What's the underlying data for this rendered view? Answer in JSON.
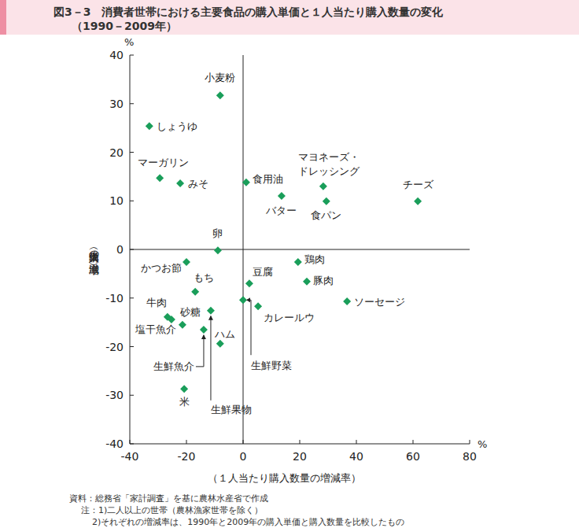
{
  "chart_data": {
    "type": "scatter",
    "title": "図3－3　消費者世帯における主要食品の購入単価と１人当たり購入数量の変化",
    "subtitle": "（1990－2009年）",
    "x_label": "（１人当たり購入数量の増減率）",
    "y_label": "（購入単価の増減率）",
    "x_unit_label": "%",
    "y_unit_label": "%",
    "notes": [
      "資料：総務省「家計調査」を基に農林水産省で作成",
      "注：1)二人以上の世帯（農林漁家世帯を除く）",
      "2)それぞれの増減率は、1990年と2009年の購入単価と購入数量を比較したもの"
    ],
    "labels": [
      "小麦粉",
      "しょうゆ",
      "マーガリン",
      "みそ",
      "食用油",
      "バター",
      "マヨネーズ・ドレッシング",
      "食パン",
      "チーズ",
      "卵",
      "かつお節",
      "鶏肉",
      "豆腐",
      "豚肉",
      "もち",
      "生鮮野菜",
      "ソーセージ",
      "カレールウ",
      "牛肉",
      "塩干魚介",
      "生鮮果物",
      "砂糖",
      "生鮮魚介",
      "ハム",
      "米"
    ],
    "x": [
      -8.1,
      -33.1,
      -29.4,
      -22.2,
      1.1,
      13.6,
      28.3,
      29.4,
      61.7,
      -8.9,
      -20.0,
      19.4,
      2.2,
      22.5,
      -16.9,
      0.0,
      36.7,
      5.3,
      -26.7,
      -25.3,
      -11.4,
      -21.4,
      -13.9,
      -8.1,
      -20.8
    ],
    "values": [
      31.7,
      25.4,
      14.7,
      13.6,
      13.8,
      11.0,
      13.0,
      9.9,
      9.9,
      -0.2,
      -2.6,
      -2.6,
      -7.0,
      -6.6,
      -8.7,
      -10.4,
      -10.7,
      -11.7,
      -13.9,
      -14.4,
      -12.6,
      -15.5,
      -16.5,
      -19.4,
      -28.7
    ],
    "color": "#1a9e5a",
    "marker": "diamond",
    "xlim": [
      -40,
      80
    ],
    "ylim": [
      -40,
      40
    ],
    "xticks": [
      -40,
      -20,
      0,
      20,
      40,
      60,
      80
    ],
    "yticks": [
      -40,
      -30,
      -20,
      -10,
      0,
      10,
      20,
      30,
      40
    ],
    "grid": false
  }
}
